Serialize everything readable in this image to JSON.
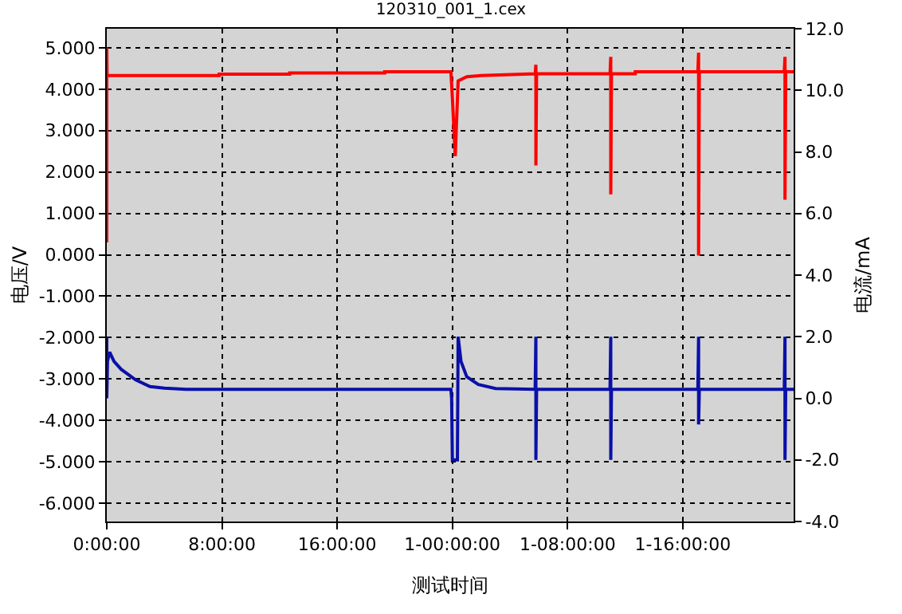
{
  "chart_data": {
    "type": "line",
    "title": "120310_001_1.cex",
    "xlabel": "测试时间",
    "ylabel": "电压/V",
    "y2label": "电流/mA",
    "xlim": [
      0,
      47.7
    ],
    "xticks": [
      {
        "value": 0,
        "label": "0:00:00"
      },
      {
        "value": 8,
        "label": "8:00:00"
      },
      {
        "value": 16,
        "label": "16:00:00"
      },
      {
        "value": 24,
        "label": "1-00:00:00"
      },
      {
        "value": 32,
        "label": "1-08:00:00"
      },
      {
        "value": 40,
        "label": "1-16:00:00"
      }
    ],
    "ylim": [
      -6.44,
      5.46
    ],
    "yticks": [
      {
        "value": 5,
        "label": "5.000"
      },
      {
        "value": 4,
        "label": "4.000"
      },
      {
        "value": 3,
        "label": "3.000"
      },
      {
        "value": 2,
        "label": "2.000"
      },
      {
        "value": 1,
        "label": "1.000"
      },
      {
        "value": 0,
        "label": "0.000"
      },
      {
        "value": -1,
        "label": "-1.000"
      },
      {
        "value": -2,
        "label": "-2.000"
      },
      {
        "value": -3,
        "label": "-3.000"
      },
      {
        "value": -4,
        "label": "-4.000"
      },
      {
        "value": -5,
        "label": "-5.000"
      },
      {
        "value": -6,
        "label": "-6.000"
      }
    ],
    "y2lim": [
      -4,
      12
    ],
    "y2ticks": [
      {
        "value": 12,
        "label": "12.0"
      },
      {
        "value": 10,
        "label": "10.0"
      },
      {
        "value": 8,
        "label": "8.0"
      },
      {
        "value": 6,
        "label": "6.0"
      },
      {
        "value": 4,
        "label": "4.0"
      },
      {
        "value": 2,
        "label": "2.0"
      },
      {
        "value": 0,
        "label": "0.0"
      },
      {
        "value": -2,
        "label": "-2.0"
      },
      {
        "value": -4,
        "label": "-4.0"
      }
    ],
    "grid": true,
    "line_style": "solid",
    "marker": "none",
    "series": [
      {
        "color": "#ff0000",
        "x": [
          0,
          0,
          0.02,
          0.05,
          7.8,
          7.8,
          12.7,
          12.7,
          19.3,
          19.3,
          23.9,
          24.0,
          24.2,
          24.4,
          25.0,
          26.0,
          29.75,
          29.8,
          29.8,
          29.85,
          29.9,
          34.95,
          35.0,
          35.0,
          35.05,
          35.1,
          36.7,
          36.7,
          41.05,
          41.1,
          41.1,
          41.15,
          41.2,
          47.05,
          47.1,
          47.1,
          47.15,
          47.2,
          47.7
        ],
        "values": [
          0.3,
          5.0,
          4.33,
          4.33,
          4.33,
          4.36,
          4.36,
          4.39,
          4.39,
          4.42,
          4.42,
          3.8,
          2.38,
          4.2,
          4.3,
          4.33,
          4.37,
          4.59,
          2.16,
          4.37,
          4.37,
          4.37,
          4.78,
          1.46,
          4.37,
          4.37,
          4.37,
          4.42,
          4.42,
          4.88,
          -0.02,
          4.42,
          4.42,
          4.42,
          4.78,
          1.33,
          4.42,
          4.42,
          4.42
        ]
      },
      {
        "color": "#0a10a8",
        "axis": "y2",
        "x": [
          0,
          0,
          0.05,
          0.2,
          0.5,
          1,
          2,
          3,
          4,
          5.5,
          23.9,
          23.95,
          24.0,
          24.35,
          24.4,
          24.6,
          25.0,
          25.8,
          27.0,
          29.75,
          29.8,
          29.8,
          29.85,
          29.9,
          34.95,
          35.0,
          35.0,
          35.05,
          35.1,
          41.05,
          41.1,
          41.1,
          41.15,
          41.2,
          47.05,
          47.1,
          47.1,
          47.15,
          47.2,
          47.7
        ],
        "values": [
          2.0,
          0.0,
          1.2,
          1.5,
          1.2,
          0.94,
          0.6,
          0.38,
          0.33,
          0.29,
          0.29,
          0.0,
          -2.0,
          -2.0,
          2.0,
          1.2,
          0.7,
          0.45,
          0.32,
          0.29,
          2.0,
          -2.0,
          0.29,
          0.29,
          0.29,
          2.0,
          -2.0,
          0.29,
          0.29,
          0.29,
          2.0,
          -0.85,
          0.29,
          0.29,
          0.29,
          2.0,
          -2.0,
          0.29,
          0.29,
          0.29
        ]
      }
    ]
  }
}
